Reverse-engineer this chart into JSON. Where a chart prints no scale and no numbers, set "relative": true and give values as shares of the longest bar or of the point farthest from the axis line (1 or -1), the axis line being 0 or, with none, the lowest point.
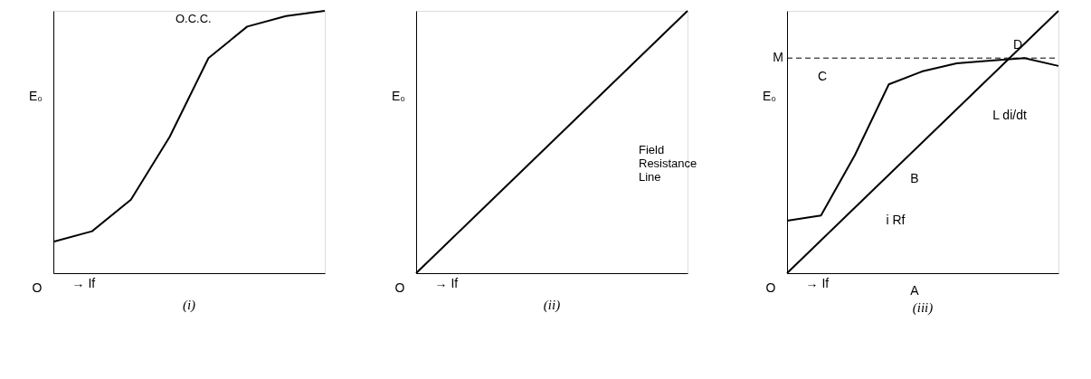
{
  "chart_data": [
    {
      "type": "line",
      "title": "(i)",
      "xlabel": "→ If",
      "ylabel": "E₀",
      "relative": true,
      "grid": false,
      "marker": "none",
      "line_style": "solid",
      "categories": [
        null,
        null,
        null,
        null,
        null,
        null,
        null,
        null
      ],
      "series": [
        {
          "name": "O.C.C.",
          "color": "#000000",
          "values": [
            0.12,
            0.16,
            0.28,
            0.52,
            0.82,
            0.94,
            0.98,
            1.0
          ]
        }
      ],
      "annotations": [
        "O"
      ]
    },
    {
      "type": "line",
      "title": "(ii)",
      "xlabel": "→ If",
      "ylabel": "E₀",
      "relative": true,
      "grid": false,
      "marker": "none",
      "line_style": "solid",
      "categories": [
        null,
        null,
        null,
        null,
        null
      ],
      "series": [
        {
          "name": "Field Resistance Line",
          "color": "#000000",
          "values": [
            0,
            0.25,
            0.5,
            0.75,
            1.0
          ]
        }
      ],
      "annotations": [
        "O"
      ]
    },
    {
      "type": "line",
      "title": "(iii)",
      "xlabel": "→ If",
      "ylabel": "E₀",
      "relative": true,
      "grid": false,
      "marker": "none",
      "line_style": "solid",
      "categories": [
        null,
        null,
        null,
        null,
        null,
        null,
        null,
        null,
        null
      ],
      "series": [
        {
          "color": "#000000",
          "values": [
            0.2,
            0.22,
            0.45,
            0.72,
            0.77,
            0.8,
            0.81,
            0.82,
            0.79
          ]
        },
        {
          "color": "#000000",
          "values": [
            0,
            0.125,
            0.25,
            0.375,
            0.5,
            0.625,
            0.75,
            0.875,
            1.0
          ]
        }
      ],
      "ref_lines": [
        {
          "axis": "y",
          "value": 0.82,
          "label": "M",
          "line_style": "dashed",
          "color": "#000000"
        }
      ],
      "annotations": [
        "O",
        "C",
        "B",
        "D",
        "A",
        "L di/dt",
        "i Rf"
      ]
    }
  ]
}
